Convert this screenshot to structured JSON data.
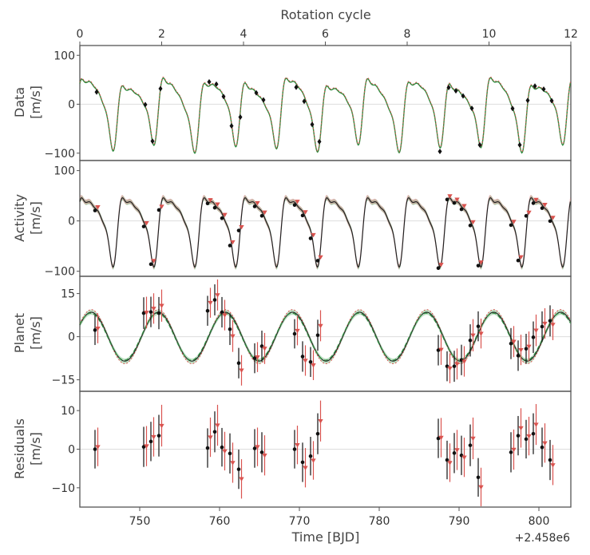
{
  "colors": {
    "data_points": "#111111",
    "model_black": "#222222",
    "model_green": "#2e8b3e",
    "model_red": "#d9534f",
    "band_green": "#5fb56f",
    "band_red": "#e88a93",
    "zero_line": "#dddddd",
    "frame": "#555555"
  },
  "top_axis": {
    "label": "Rotation cycle",
    "ticks": [
      "0",
      "2",
      "4",
      "6",
      "8",
      "10",
      "12"
    ],
    "range": [
      0,
      12
    ]
  },
  "x_axis": {
    "label": "Time [BJD]",
    "offset_label": "+2.458e6",
    "ticks": [
      "750",
      "760",
      "770",
      "780",
      "790",
      "800"
    ],
    "range": [
      742.5,
      804
    ]
  },
  "panels": [
    {
      "title": "Data",
      "unit": "[m/s]",
      "ticks": [
        "100",
        "0",
        "−100"
      ],
      "tick_values": [
        100,
        0,
        -100
      ],
      "ylim": [
        -115,
        120
      ]
    },
    {
      "title": "Activity",
      "unit": "[m/s]",
      "ticks": [
        "100",
        "0",
        "−100"
      ],
      "tick_values": [
        100,
        0,
        -100
      ],
      "ylim": [
        -110,
        120
      ]
    },
    {
      "title": "Planet",
      "unit": "[m/s]",
      "ticks": [
        "15",
        "0",
        "−15"
      ],
      "tick_values": [
        15,
        0,
        -15
      ],
      "ylim": [
        -19,
        21
      ]
    },
    {
      "title": "Residuals",
      "unit": "[m/s]",
      "ticks": [
        "10",
        "0",
        "−10"
      ],
      "tick_values": [
        10,
        0,
        -10
      ],
      "ylim": [
        -15,
        15
      ]
    }
  ],
  "chart_data": {
    "type": "scatter",
    "model": {
      "rotation_period_days": 5.12,
      "activity_harmonics": [
        {
          "amplitude": 52,
          "phase": 0.0
        },
        {
          "amplitude": 26,
          "phase": 0.9
        },
        {
          "amplitude": 14,
          "phase": 1.7
        },
        {
          "amplitude": 6,
          "phase": 2.4
        }
      ],
      "planet_period_days": 8.4,
      "planet_amplitude": 8.5,
      "planet_phase": 0.5
    },
    "times": [
      744.6,
      750.7,
      751.6,
      752.6,
      758.7,
      759.6,
      760.5,
      761.5,
      762.6,
      764.6,
      765.5,
      769.6,
      770.6,
      771.6,
      772.5,
      787.6,
      788.7,
      789.6,
      790.5,
      791.6,
      792.6,
      796.7,
      797.6,
      798.6,
      799.5,
      800.6,
      801.6
    ],
    "planet_rv": [
      2.3,
      8.2,
      8.6,
      8.2,
      9.0,
      12.8,
      8.5,
      2.6,
      -9.2,
      -7.5,
      -3.3,
      1.0,
      -6.9,
      -8.8,
      0.5,
      -4.7,
      -10.3,
      -10.3,
      -8.1,
      -1.3,
      3.6,
      -2.4,
      -6.6,
      -4.2,
      -0.2,
      3.5,
      5.5
    ],
    "planet_rv_err": [
      5.2,
      5.5,
      5.3,
      5.6,
      5.2,
      5.4,
      5.3,
      5.5,
      5.3,
      5.2,
      5.4,
      5.1,
      5.3,
      5.2,
      5.4,
      5.3,
      5.2,
      5.4,
      5.3,
      5.6,
      5.2,
      5.4,
      5.3,
      5.2,
      5.5,
      5.3,
      5.4
    ],
    "residuals": [
      0.0,
      0.6,
      2.0,
      3.5,
      0.3,
      4.5,
      0.5,
      -1.1,
      -5.2,
      0.2,
      -0.8,
      0.0,
      -3.4,
      -1.8,
      4.0,
      2.8,
      -2.8,
      -1.0,
      -1.6,
      1.0,
      -7.3,
      -0.8,
      3.5,
      2.6,
      4.0,
      0.5,
      -2.8
    ],
    "residuals_alt": [
      0.6,
      0.8,
      3.2,
      6.1,
      3.1,
      6.2,
      -0.5,
      -3.5,
      -7.7,
      0.6,
      -1.6,
      1.1,
      -4.8,
      -2.9,
      7.3,
      3.0,
      -3.5,
      -0.2,
      -2.1,
      2.8,
      -9.8,
      -0.1,
      5.5,
      3.4,
      6.4,
      1.6,
      -4.1
    ],
    "residuals_err": [
      5.0,
      5.2,
      5.1,
      5.4,
      5.1,
      5.3,
      5.0,
      5.2,
      5.1,
      5.0,
      5.2,
      5.0,
      5.1,
      5.0,
      5.3,
      5.1,
      5.0,
      5.2,
      5.1,
      5.4,
      5.0,
      5.2,
      5.1,
      5.0,
      5.3,
      5.1,
      5.2
    ]
  }
}
